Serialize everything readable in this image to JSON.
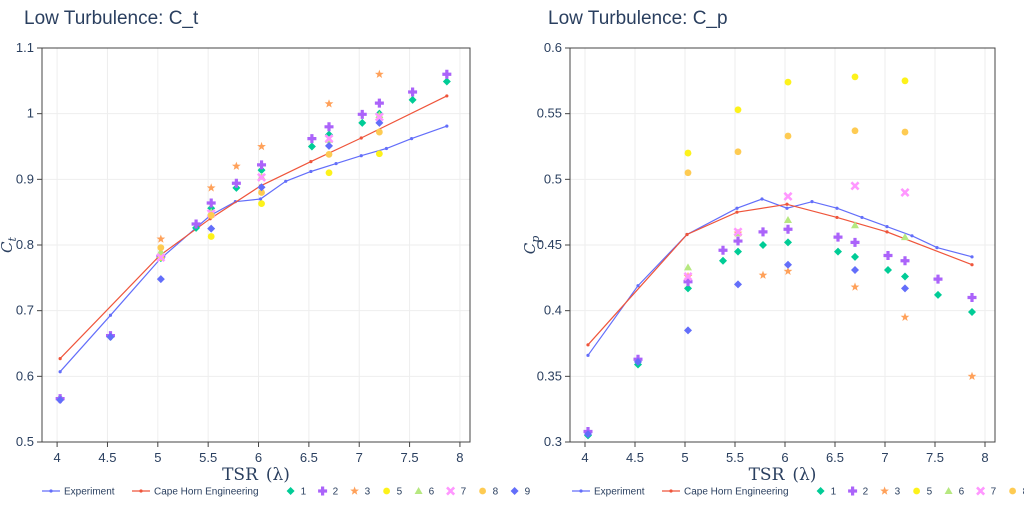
{
  "legend": [
    {
      "name": "Experiment",
      "kind": "line",
      "color": "#636efa",
      "marker": "dot"
    },
    {
      "name": "Cape Horn Engineering",
      "kind": "line",
      "color": "#ef553b",
      "marker": "dot"
    },
    {
      "name": "1",
      "kind": "marker",
      "color": "#00cc96",
      "marker": "diamond"
    },
    {
      "name": "2",
      "kind": "marker",
      "color": "#ab63fa",
      "marker": "cross"
    },
    {
      "name": "3",
      "kind": "marker",
      "color": "#ffa15a",
      "marker": "star"
    },
    {
      "name": "5",
      "kind": "marker",
      "color": "#fdf21a",
      "marker": "dot"
    },
    {
      "name": "6",
      "kind": "marker",
      "color": "#b6e880",
      "marker": "triangle"
    },
    {
      "name": "7",
      "kind": "marker",
      "color": "#ff97ff",
      "marker": "x"
    },
    {
      "name": "8",
      "kind": "marker",
      "color": "#fecb52",
      "marker": "dot"
    },
    {
      "name": "9",
      "kind": "marker",
      "color": "#636efa",
      "marker": "diamond"
    }
  ],
  "chart_data": [
    {
      "type": "scatter",
      "title": "Low Turbulence: C_t",
      "xlabel": "TSR",
      "xlabel_symbol": "(λ)",
      "ylabel": "C",
      "ylabel_sub": "t",
      "xlim": [
        3.85,
        8.1
      ],
      "ylim": [
        0.5,
        1.1
      ],
      "xticks": [
        4,
        4.5,
        5,
        5.5,
        6,
        6.5,
        7,
        7.5,
        8
      ],
      "xtick_labels": [
        "4",
        "4.5",
        "5",
        "5.5",
        "6",
        "6.5",
        "7",
        "7.5",
        "8"
      ],
      "yticks": [
        0.5,
        0.6,
        0.7,
        0.8,
        0.9,
        1.0,
        1.1
      ],
      "ytick_labels": [
        "0.5",
        "0.6",
        "0.7",
        "0.8",
        "0.9",
        "1",
        "1.1"
      ],
      "grid": true,
      "legend_position": "bottom",
      "series": [
        {
          "name": "Experiment",
          "x": [
            4.03,
            4.53,
            5.02,
            5.52,
            5.77,
            6.02,
            6.27,
            6.52,
            6.77,
            7.02,
            7.27,
            7.52,
            7.87
          ],
          "y": [
            0.607,
            0.693,
            0.778,
            0.845,
            0.866,
            0.87,
            0.897,
            0.912,
            0.924,
            0.936,
            0.947,
            0.962,
            0.981
          ]
        },
        {
          "name": "Cape Horn Engineering",
          "x": [
            4.03,
            5.02,
            5.52,
            6.02,
            6.52,
            7.02,
            7.87
          ],
          "y": [
            0.627,
            0.784,
            0.84,
            0.89,
            0.927,
            0.963,
            1.027
          ]
        },
        {
          "name": "1",
          "x": [
            4.03,
            4.53,
            5.03,
            5.38,
            5.53,
            5.78,
            6.03,
            6.53,
            6.7,
            7.03,
            7.2,
            7.53,
            7.87
          ],
          "y": [
            0.566,
            0.66,
            0.78,
            0.826,
            0.856,
            0.887,
            0.914,
            0.95,
            0.968,
            0.986,
            1.0,
            1.021,
            1.049
          ]
        },
        {
          "name": "2",
          "x": [
            4.03,
            4.53,
            5.03,
            5.38,
            5.53,
            5.78,
            6.03,
            6.53,
            6.7,
            7.03,
            7.2,
            7.53,
            7.87
          ],
          "y": [
            0.566,
            0.662,
            0.783,
            0.832,
            0.864,
            0.894,
            0.922,
            0.962,
            0.98,
            0.999,
            1.016,
            1.033,
            1.06
          ]
        },
        {
          "name": "3",
          "x": [
            5.03,
            5.53,
            5.78,
            6.03,
            6.7,
            7.2
          ],
          "y": [
            0.809,
            0.887,
            0.92,
            0.95,
            1.015,
            1.06
          ]
        },
        {
          "name": "5",
          "x": [
            5.03,
            5.53,
            6.03,
            6.7,
            7.2
          ],
          "y": [
            0.781,
            0.813,
            0.863,
            0.91,
            0.939
          ]
        },
        {
          "name": "6",
          "x": [
            5.03,
            5.53,
            6.03,
            6.7,
            7.2
          ],
          "y": [
            0.79,
            0.85,
            0.904,
            0.96,
            0.998
          ]
        },
        {
          "name": "7",
          "x": [
            5.03,
            5.53,
            6.03,
            6.7,
            7.2
          ],
          "y": [
            0.781,
            0.848,
            0.903,
            0.962,
            0.995
          ]
        },
        {
          "name": "8",
          "x": [
            5.03,
            5.53,
            6.03,
            6.7,
            7.2
          ],
          "y": [
            0.796,
            0.845,
            0.88,
            0.938,
            0.972
          ]
        },
        {
          "name": "9",
          "x": [
            4.03,
            4.53,
            5.03,
            5.53,
            6.03,
            6.7,
            7.2
          ],
          "y": [
            0.564,
            0.66,
            0.748,
            0.825,
            0.888,
            0.951,
            0.986
          ]
        }
      ]
    },
    {
      "type": "scatter",
      "title": "Low Turbulence: C_p",
      "xlabel": "TSR",
      "xlabel_symbol": "(λ)",
      "ylabel": "C",
      "ylabel_sub": "p",
      "xlim": [
        3.85,
        8.1
      ],
      "ylim": [
        0.3,
        0.6
      ],
      "xticks": [
        4,
        4.5,
        5,
        5.5,
        6,
        6.5,
        7,
        7.5,
        8
      ],
      "xtick_labels": [
        "4",
        "4.5",
        "5",
        "5.5",
        "6",
        "6.5",
        "7",
        "7.5",
        "8"
      ],
      "yticks": [
        0.3,
        0.35,
        0.4,
        0.45,
        0.5,
        0.55,
        0.6
      ],
      "ytick_labels": [
        "0.3",
        "0.35",
        "0.4",
        "0.45",
        "0.5",
        "0.55",
        "0.6"
      ],
      "grid": true,
      "legend_position": "bottom",
      "series": [
        {
          "name": "Experiment",
          "x": [
            4.03,
            4.53,
            5.02,
            5.52,
            5.77,
            6.02,
            6.27,
            6.52,
            6.77,
            7.02,
            7.27,
            7.52,
            7.87
          ],
          "y": [
            0.366,
            0.419,
            0.458,
            0.478,
            0.485,
            0.478,
            0.483,
            0.478,
            0.471,
            0.464,
            0.457,
            0.448,
            0.441
          ]
        },
        {
          "name": "Cape Horn Engineering",
          "x": [
            4.03,
            5.02,
            5.52,
            6.02,
            6.52,
            7.02,
            7.87
          ],
          "y": [
            0.374,
            0.458,
            0.475,
            0.481,
            0.471,
            0.46,
            0.435
          ]
        },
        {
          "name": "1",
          "x": [
            4.03,
            4.53,
            5.03,
            5.38,
            5.53,
            5.78,
            6.03,
            6.53,
            6.7,
            7.03,
            7.2,
            7.53,
            7.87
          ],
          "y": [
            0.305,
            0.359,
            0.417,
            0.438,
            0.445,
            0.45,
            0.452,
            0.445,
            0.441,
            0.431,
            0.426,
            0.412,
            0.399
          ]
        },
        {
          "name": "2",
          "x": [
            4.03,
            4.53,
            5.03,
            5.38,
            5.53,
            5.78,
            6.03,
            6.53,
            6.7,
            7.03,
            7.2,
            7.53,
            7.87
          ],
          "y": [
            0.308,
            0.363,
            0.422,
            0.446,
            0.453,
            0.46,
            0.462,
            0.456,
            0.452,
            0.442,
            0.438,
            0.424,
            0.41
          ]
        },
        {
          "name": "3",
          "x": [
            5.03,
            5.53,
            5.78,
            6.03,
            6.7,
            7.2,
            7.87
          ],
          "y": [
            0.426,
            0.459,
            0.427,
            0.43,
            0.418,
            0.395,
            0.35
          ]
        },
        {
          "name": "5",
          "x": [
            5.03,
            5.53,
            6.03,
            6.7,
            7.2
          ],
          "y": [
            0.52,
            0.553,
            0.574,
            0.578,
            0.575
          ]
        },
        {
          "name": "6",
          "x": [
            5.03,
            5.53,
            6.03,
            6.7,
            7.2
          ],
          "y": [
            0.433,
            0.459,
            0.469,
            0.465,
            0.456
          ]
        },
        {
          "name": "7",
          "x": [
            5.03,
            5.53,
            6.03,
            6.7,
            7.2
          ],
          "y": [
            0.426,
            0.46,
            0.487,
            0.495,
            0.49
          ]
        },
        {
          "name": "8",
          "x": [
            5.03,
            5.53,
            6.03,
            6.7,
            7.2
          ],
          "y": [
            0.505,
            0.521,
            0.533,
            0.537,
            0.536
          ]
        },
        {
          "name": "9",
          "x": [
            4.03,
            4.53,
            5.03,
            5.53,
            6.03,
            6.7,
            7.2
          ],
          "y": [
            0.306,
            0.361,
            0.385,
            0.42,
            0.435,
            0.431,
            0.417
          ]
        }
      ]
    }
  ]
}
